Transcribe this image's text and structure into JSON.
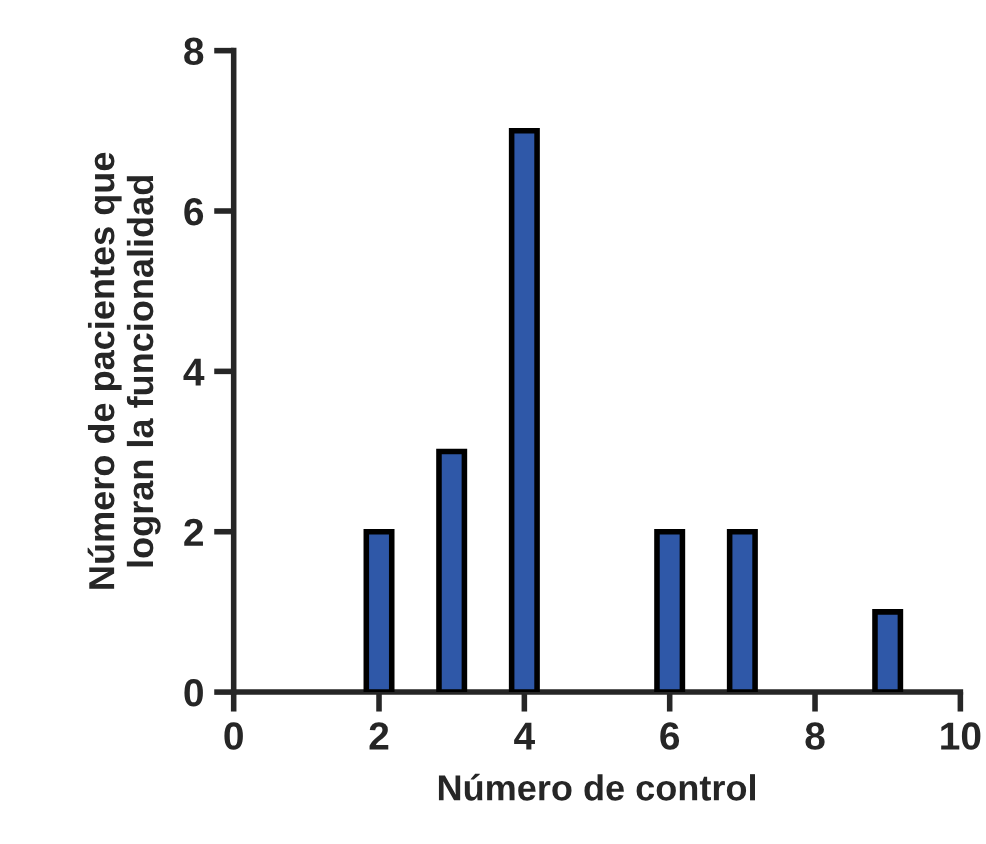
{
  "chart_data": {
    "type": "bar",
    "xlabel": "Número de control",
    "ylabel": "Número de pacientes que\nlogran la funcionalidad",
    "x": [
      2,
      3,
      4,
      6,
      7,
      9
    ],
    "values": [
      2,
      3,
      7,
      2,
      2,
      1
    ],
    "color": "#2f58a8",
    "xlim": [
      0,
      10
    ],
    "xticks": [
      0,
      2,
      4,
      6,
      8,
      10
    ],
    "ylim": [
      0,
      8
    ],
    "yticks": [
      0,
      2,
      4,
      6,
      8
    ],
    "grid": false,
    "legend": false
  }
}
